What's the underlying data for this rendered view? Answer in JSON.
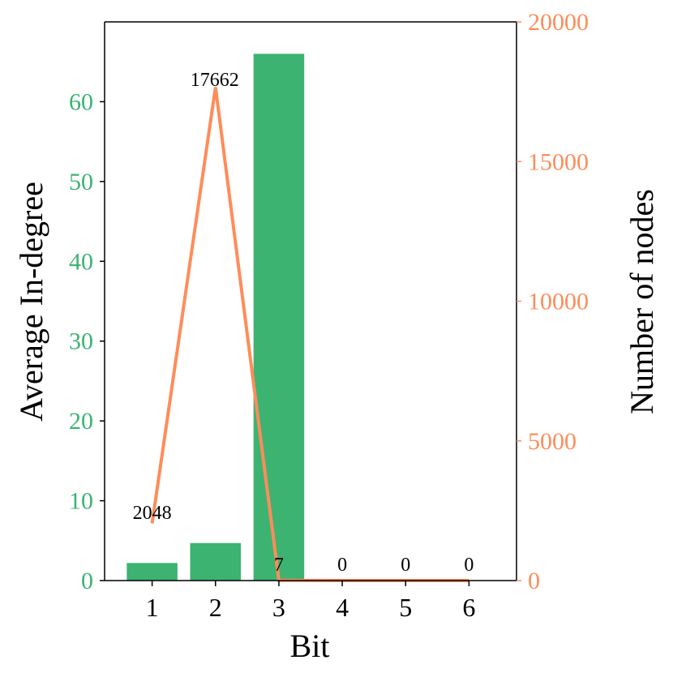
{
  "chart_data": {
    "type": "bar",
    "categories": [
      "1",
      "2",
      "3",
      "4",
      "5",
      "6"
    ],
    "series": [
      {
        "type": "bar",
        "axis": "left",
        "values": [
          2.2,
          4.7,
          66.0,
          0,
          0,
          0
        ],
        "color": "#3cb371"
      },
      {
        "type": "line",
        "axis": "right",
        "values": [
          2048,
          17662,
          7,
          0,
          0,
          0
        ],
        "data_labels": [
          "2048",
          "17662",
          "7",
          "0",
          "0",
          "0"
        ],
        "color": "#ff8c5a"
      }
    ],
    "xlabel": "Bit",
    "ylabel_left": "Average In-degree",
    "ylabel_right": "Number of nodes",
    "ylim_left": [
      0,
      70
    ],
    "ylim_right": [
      0,
      20000
    ],
    "yticks_left": [
      "0",
      "10",
      "20",
      "30",
      "40",
      "50",
      "60"
    ],
    "yticks_right": [
      "0",
      "5000",
      "10000",
      "15000",
      "20000"
    ],
    "grid": false
  }
}
